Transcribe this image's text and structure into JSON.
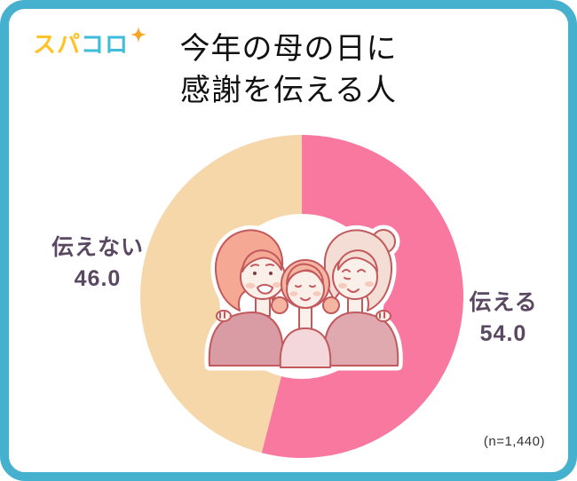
{
  "brand": {
    "name": "スパコロ",
    "logo": {
      "part1": "スパ",
      "part2": "コロ"
    },
    "sparkle_icon": "four-point-sparkle",
    "colors": {
      "part1": "#FFC32A",
      "part2": "#3EBCD9",
      "sparkle": "#F8A526"
    }
  },
  "title": {
    "line1": "今年の母の日に",
    "line2": "感謝を伝える人"
  },
  "chart_data": {
    "type": "pie",
    "subtype": "donut",
    "title": "今年の母の日に感謝を伝える人",
    "unit": "%",
    "start_angle_deg": 0,
    "direction": "clockwise",
    "inner_radius_ratio": 0.505,
    "segments": [
      {
        "key": "tell",
        "label": "伝える",
        "value": 54.0,
        "display_value": "54.0",
        "color": "#F978A0"
      },
      {
        "key": "not-tell",
        "label": "伝えない",
        "value": 46.0,
        "display_value": "46.0",
        "color": "#F5D7AA"
      }
    ],
    "center_image": "family-illustration",
    "sample_size": "(n=1,440)"
  },
  "callouts": {
    "left": {
      "label": "伝えない",
      "value": "46.0"
    },
    "right": {
      "label": "伝える",
      "value": "54.0"
    }
  },
  "footer": {
    "sample_size": "(n=1,440)"
  },
  "theme": {
    "border_color": "#45B1CE",
    "background": "#FFFFFF",
    "title_color": "#111111",
    "callout_color": "#5A4862",
    "note_color": "#333333"
  }
}
